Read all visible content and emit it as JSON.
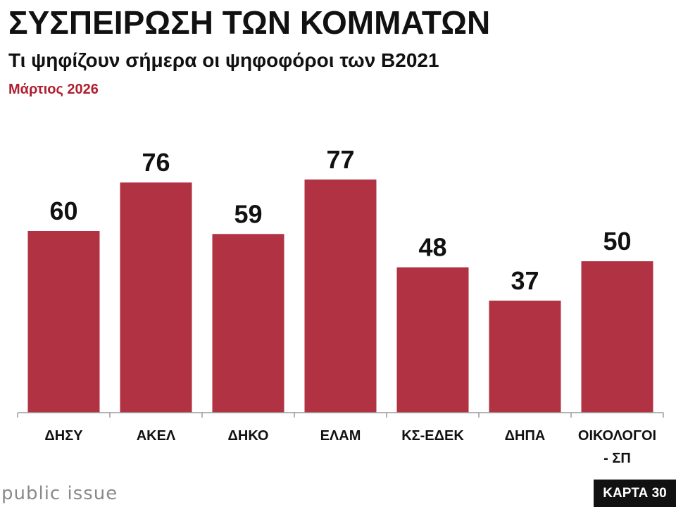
{
  "header": {
    "title": "ΣΥΣΠΕΙΡΩΣΗ ΤΩΝ ΚΟΜΜΑΤΩΝ",
    "subtitle": "Τι ψηφίζουν σήμερα οι ψηφοφόροι των Β2021",
    "date": "Μάρτιος 2026"
  },
  "chart_data": {
    "type": "bar",
    "title": "ΣΥΣΠΕΙΡΩΣΗ ΤΩΝ ΚΟΜΜΑΤΩΝ",
    "subtitle": "Τι ψηφίζουν σήμερα οι ψηφοφόροι των Β2021",
    "categories": [
      [
        "ΔΗΣΥ"
      ],
      [
        "ΑΚΕΛ"
      ],
      [
        "ΔΗΚΟ"
      ],
      [
        "ΕΛΑΜ"
      ],
      [
        "ΚΣ-ΕΔΕΚ"
      ],
      [
        "ΔΗΠΑ"
      ],
      [
        "ΟΙΚΟΛΟΓΟΙ",
        "- ΣΠ"
      ]
    ],
    "values": [
      60,
      76,
      59,
      77,
      48,
      37,
      50
    ],
    "ylim": [
      0,
      100
    ],
    "grid": false,
    "xlabel": "",
    "ylabel": "",
    "colors": {
      "bar": "#b03243",
      "axis": "#9a9a9a"
    }
  },
  "footer": {
    "brand": "public issue",
    "badge": "ΚΑΡΤΑ 30"
  }
}
